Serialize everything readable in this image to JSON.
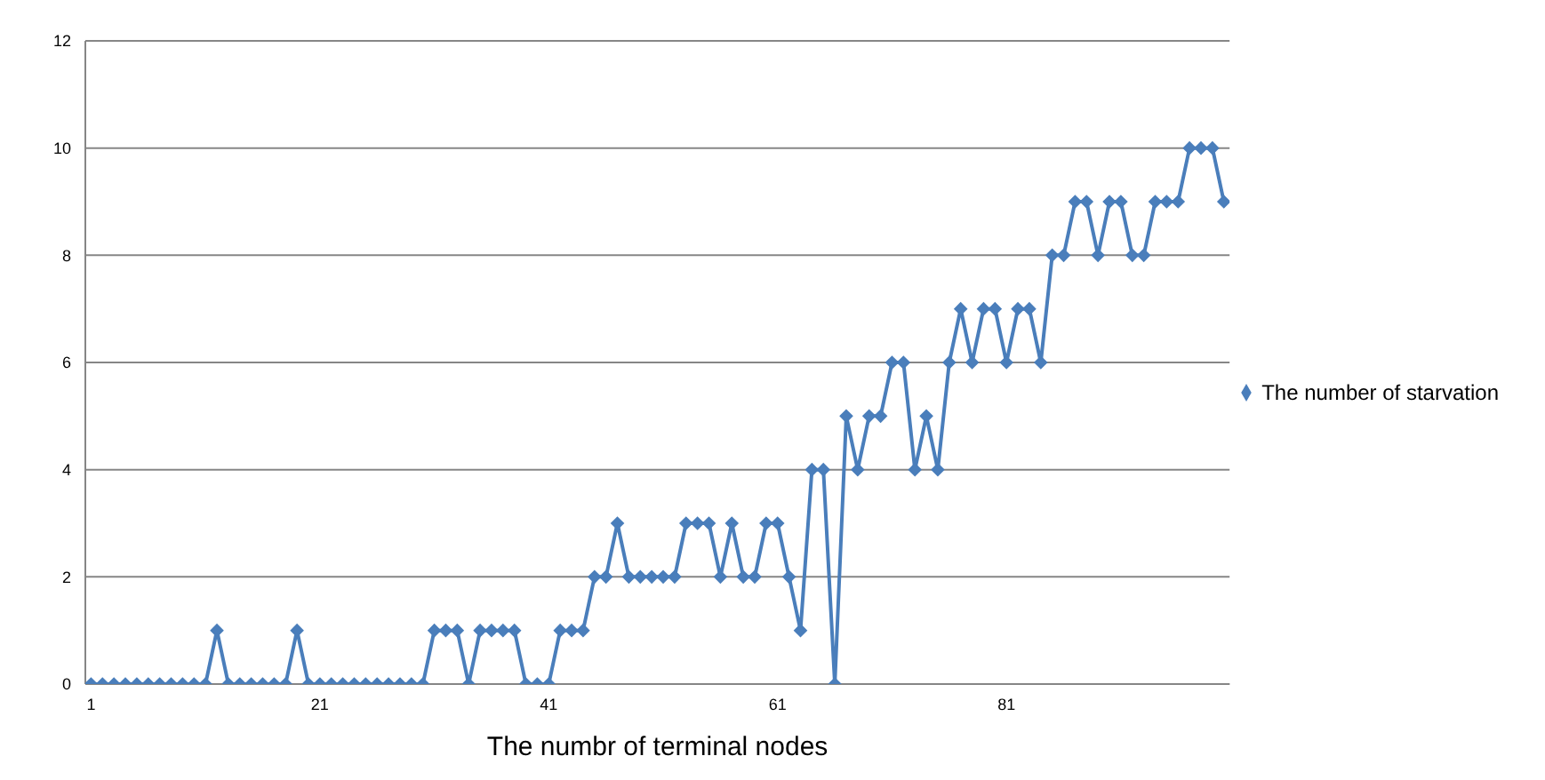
{
  "chart_data": {
    "type": "line",
    "xlabel": "The numbr of terminal nodes",
    "x": [
      1,
      2,
      3,
      4,
      5,
      6,
      7,
      8,
      9,
      10,
      11,
      12,
      13,
      14,
      15,
      16,
      17,
      18,
      19,
      20,
      21,
      22,
      23,
      24,
      25,
      26,
      27,
      28,
      29,
      30,
      31,
      32,
      33,
      34,
      35,
      36,
      37,
      38,
      39,
      40,
      41,
      42,
      43,
      44,
      45,
      46,
      47,
      48,
      49,
      50,
      51,
      52,
      53,
      54,
      55,
      56,
      57,
      58,
      59,
      60,
      61,
      62,
      63,
      64,
      65,
      66,
      67,
      68,
      69,
      70,
      71,
      72,
      73,
      74,
      75,
      76,
      77,
      78,
      79,
      80,
      81,
      82,
      83,
      84,
      85,
      86,
      87,
      88,
      89,
      90,
      91,
      92,
      93,
      94,
      95,
      96,
      97,
      98,
      99,
      100
    ],
    "series": [
      {
        "name": "The number of starvation",
        "color": "#4a7ebb",
        "values": [
          0,
          0,
          0,
          0,
          0,
          0,
          0,
          0,
          0,
          0,
          0,
          1,
          0,
          0,
          0,
          0,
          0,
          0,
          1,
          0,
          0,
          0,
          0,
          0,
          0,
          0,
          0,
          0,
          0,
          0,
          1,
          1,
          1,
          0,
          1,
          1,
          1,
          1,
          0,
          0,
          0,
          1,
          1,
          1,
          2,
          2,
          3,
          2,
          2,
          2,
          2,
          2,
          3,
          3,
          3,
          2,
          3,
          2,
          2,
          3,
          3,
          2,
          1,
          4,
          4,
          0,
          5,
          4,
          5,
          5,
          6,
          6,
          4,
          5,
          4,
          6,
          7,
          6,
          7,
          7,
          6,
          7,
          7,
          6,
          8,
          8,
          9,
          9,
          8,
          9,
          9,
          8,
          8,
          9,
          9,
          9,
          10,
          10,
          10,
          9
        ]
      }
    ],
    "xlim": [
      0.5,
      100.5
    ],
    "xticks": [
      1,
      21,
      41,
      61,
      81
    ],
    "ylim": [
      0,
      12
    ],
    "yticks": [
      0,
      2,
      4,
      6,
      8,
      10,
      12
    ],
    "grid": "y",
    "legend": "right",
    "marker": "diamond",
    "line_style": "solid"
  }
}
